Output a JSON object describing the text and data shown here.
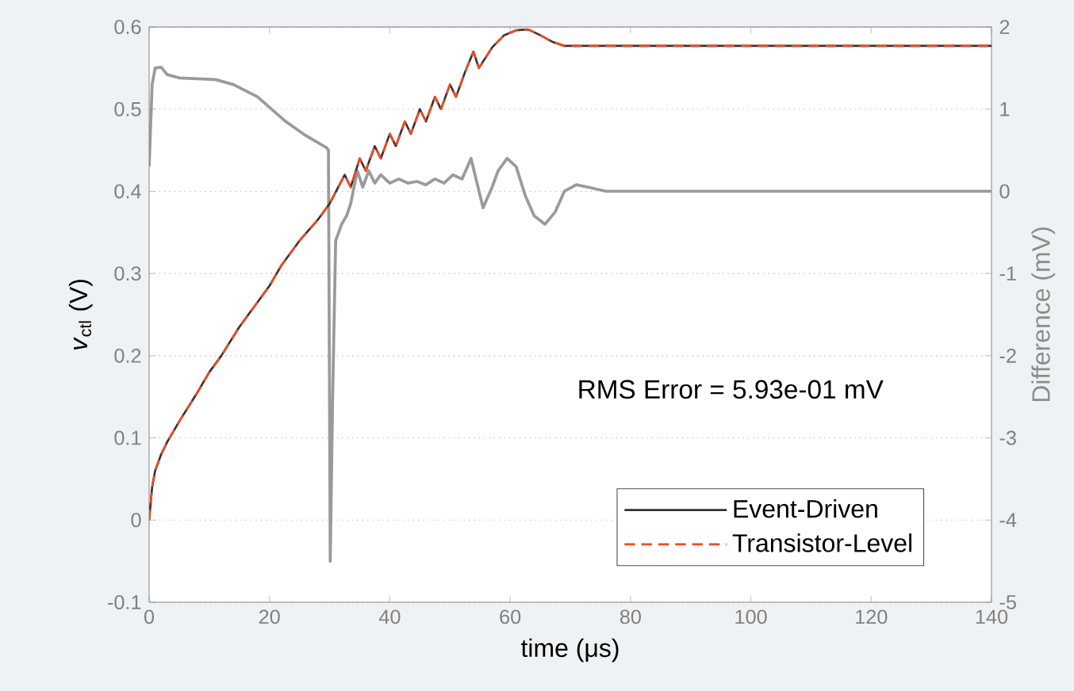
{
  "chart_data": {
    "type": "line",
    "xlabel": "time (μs)",
    "ylabel": "*v*$_{ctl}$ (V)",
    "y2label": "Difference (mV)",
    "annotations": [
      "RMS Error = 5.93e-01 mV"
    ],
    "xlim": [
      0,
      140
    ],
    "xticks": [
      0,
      20,
      40,
      60,
      80,
      100,
      120,
      140
    ],
    "ylim": [
      -0.1,
      0.6
    ],
    "yticks": [
      -0.1,
      0,
      0.1,
      0.2,
      0.3,
      0.4,
      0.5,
      0.6
    ],
    "y2lim": [
      -5,
      2
    ],
    "y2ticks": [
      -5,
      -4,
      -3,
      -2,
      -1,
      0,
      1,
      2
    ],
    "grid": "y",
    "legend": "bottom right",
    "series": [
      {
        "name": "Event-Driven",
        "color": "#333333",
        "line_style": "solid",
        "x": [
          0,
          0.5,
          1,
          2,
          3,
          5,
          8,
          10,
          12,
          15,
          18,
          20,
          22,
          25,
          28,
          30,
          32.5,
          33.5,
          35,
          36,
          37.5,
          38.5,
          40,
          41,
          42.5,
          43.5,
          45,
          46,
          47.5,
          48.5,
          50,
          51,
          52.5,
          53.9,
          54.8,
          57,
          59,
          61,
          63,
          65,
          67,
          69,
          72,
          140
        ],
        "values": [
          0,
          0.04,
          0.06,
          0.08,
          0.095,
          0.12,
          0.155,
          0.18,
          0.2,
          0.235,
          0.265,
          0.285,
          0.31,
          0.34,
          0.365,
          0.385,
          0.42,
          0.405,
          0.44,
          0.425,
          0.455,
          0.44,
          0.47,
          0.455,
          0.485,
          0.47,
          0.5,
          0.485,
          0.515,
          0.5,
          0.53,
          0.515,
          0.545,
          0.57,
          0.55,
          0.575,
          0.59,
          0.596,
          0.597,
          0.59,
          0.582,
          0.577,
          0.577,
          0.577
        ]
      },
      {
        "name": "Transistor-Level",
        "color": "#f04a23",
        "line_style": "dashed",
        "x": [
          0,
          0.5,
          1,
          2,
          3,
          5,
          8,
          10,
          12,
          15,
          18,
          20,
          22,
          25,
          28,
          30,
          32.5,
          33.5,
          35,
          36,
          37.5,
          38.5,
          40,
          41,
          42.5,
          43.5,
          45,
          46,
          47.5,
          48.5,
          50,
          51,
          52.5,
          53.9,
          54.8,
          57,
          59,
          61,
          63,
          65,
          67,
          69,
          72,
          140
        ],
        "values": [
          0,
          0.04,
          0.06,
          0.08,
          0.095,
          0.12,
          0.155,
          0.18,
          0.2,
          0.235,
          0.265,
          0.285,
          0.31,
          0.34,
          0.365,
          0.385,
          0.42,
          0.405,
          0.44,
          0.425,
          0.455,
          0.44,
          0.47,
          0.455,
          0.485,
          0.47,
          0.5,
          0.485,
          0.515,
          0.5,
          0.53,
          0.515,
          0.545,
          0.57,
          0.55,
          0.575,
          0.59,
          0.596,
          0.597,
          0.59,
          0.582,
          0.577,
          0.577,
          0.577
        ]
      },
      {
        "color": "#9a9a9a",
        "line_style": "solid",
        "axis": "y2",
        "x": [
          0,
          0.5,
          1,
          2,
          3,
          5,
          8,
          11,
          14,
          18,
          22.7,
          26,
          29.5,
          29.8,
          30.1,
          30.5,
          31,
          32,
          32.8,
          33.5,
          34.6,
          35.5,
          36.5,
          37.5,
          38.5,
          40,
          41.5,
          43,
          44.5,
          46,
          47.5,
          49,
          50.5,
          52,
          53.5,
          54.5,
          55.5,
          57,
          58,
          59.5,
          61,
          62.5,
          64,
          65.8,
          67.5,
          69,
          71,
          73,
          76,
          80,
          140
        ],
        "values": [
          0.3,
          1.3,
          1.5,
          1.51,
          1.42,
          1.38,
          1.37,
          1.36,
          1.3,
          1.15,
          0.85,
          0.68,
          0.53,
          0.5,
          -4.5,
          -2.5,
          -0.6,
          -0.4,
          -0.3,
          -0.15,
          0.25,
          0.05,
          0.25,
          0.1,
          0.2,
          0.1,
          0.15,
          0.1,
          0.12,
          0.08,
          0.15,
          0.1,
          0.2,
          0.15,
          0.4,
          0.1,
          -0.2,
          0.05,
          0.25,
          0.4,
          0.3,
          -0.05,
          -0.3,
          -0.4,
          -0.25,
          0,
          0.08,
          0.05,
          0,
          0,
          0
        ]
      }
    ]
  }
}
